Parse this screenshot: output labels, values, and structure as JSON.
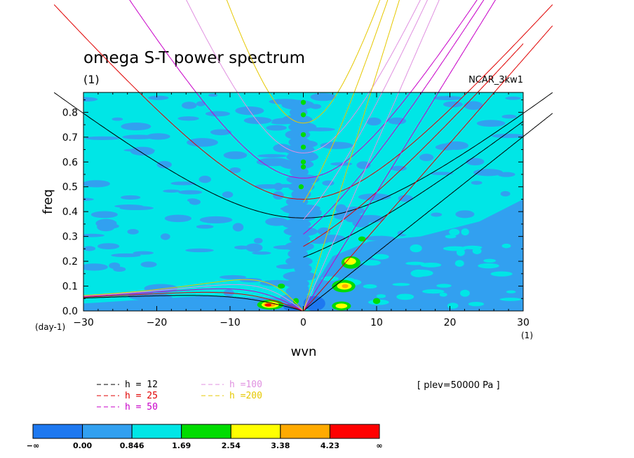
{
  "chart_data": {
    "type": "heatmap",
    "title": "omega S-T power spectrum",
    "subtitle": "(1)",
    "dataset_label": "NCAR_3kw1",
    "xlabel": "wvn",
    "ylabel": "freq",
    "x_unit_label": "(1)",
    "y_unit_label": "(day-1)",
    "xlim": [
      -30,
      30
    ],
    "ylim": [
      0,
      0.88
    ],
    "x_ticks": [
      -30,
      -20,
      -10,
      0,
      10,
      20,
      30
    ],
    "x_tick_labels": [
      "−30",
      "−20",
      "−10",
      "0",
      "10",
      "20",
      "30"
    ],
    "y_ticks": [
      0,
      0.1,
      0.2,
      0.3,
      0.4,
      0.5,
      0.6,
      0.7,
      0.8
    ],
    "y_tick_labels": [
      "0.0",
      "0.1",
      "0.2",
      "0.3",
      "0.4",
      "0.5",
      "0.6",
      "0.7",
      "0.8"
    ],
    "annotation": "[ plev=50000 Pa ]",
    "dispersion_legend": [
      {
        "label": "h = 12",
        "color": "#000000"
      },
      {
        "label": "h = 25",
        "color": "#e00000"
      },
      {
        "label": "h = 50",
        "color": "#c800c8"
      },
      {
        "label": "h =100",
        "color": "#e090e0"
      },
      {
        "label": "h =200",
        "color": "#e6c800"
      }
    ],
    "dispersion_curves": [
      {
        "h": 12,
        "color": "#000000"
      },
      {
        "h": 25,
        "color": "#e00000"
      },
      {
        "h": 50,
        "color": "#c800c8"
      },
      {
        "h": 100,
        "color": "#e090e0"
      },
      {
        "h": 200,
        "color": "#e6c800"
      }
    ],
    "colorbar": {
      "labels": [
        "−∞",
        "0.00",
        "0.846",
        "1.69",
        "2.54",
        "3.38",
        "4.23",
        "∞"
      ],
      "colors": [
        "#1e78f0",
        "#32a0f0",
        "#00e6e6",
        "#00dc00",
        "#ffff00",
        "#ffaa00",
        "#ff0000"
      ]
    },
    "field_levels": {
      "background": "#00e6e6",
      "low": "#32a0f0",
      "lowest": "#1e78f0",
      "mid": "#00dc00",
      "high": "#ffff00",
      "higher": "#ffaa00",
      "max": "#ff0000"
    },
    "grid": false,
    "legend_placement": "bottom-left"
  }
}
